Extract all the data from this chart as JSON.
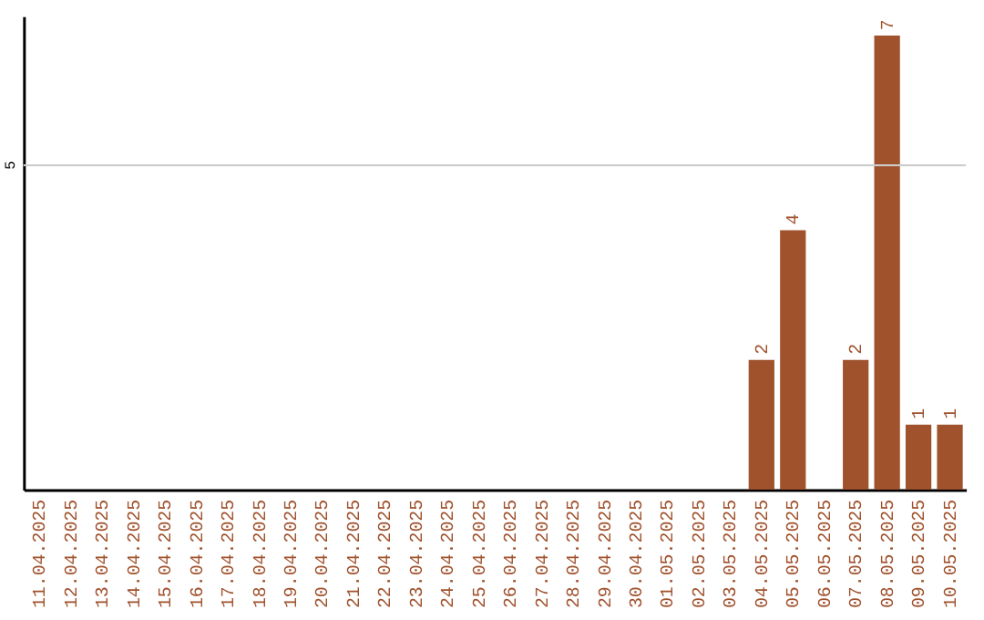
{
  "chart_data": {
    "type": "bar",
    "categories": [
      "11.04.2025",
      "12.04.2025",
      "13.04.2025",
      "14.04.2025",
      "15.04.2025",
      "16.04.2025",
      "17.04.2025",
      "18.04.2025",
      "19.04.2025",
      "20.04.2025",
      "21.04.2025",
      "22.04.2025",
      "23.04.2025",
      "24.04.2025",
      "25.04.2025",
      "26.04.2025",
      "27.04.2025",
      "28.04.2025",
      "29.04.2025",
      "30.04.2025",
      "01.05.2025",
      "02.05.2025",
      "03.05.2025",
      "04.05.2025",
      "05.05.2025",
      "06.05.2025",
      "07.05.2025",
      "08.05.2025",
      "09.05.2025",
      "10.05.2025"
    ],
    "values": [
      null,
      null,
      null,
      null,
      null,
      null,
      null,
      null,
      null,
      null,
      null,
      null,
      null,
      null,
      null,
      null,
      null,
      null,
      null,
      null,
      null,
      null,
      null,
      2,
      4,
      null,
      2,
      7,
      1,
      1
    ],
    "data_labels": true,
    "color": "#a0522d",
    "ylim": [
      0,
      7.3
    ],
    "ref_lines": [
      {
        "axis": "y",
        "value": 5,
        "label": "5",
        "color": "#cccccc"
      }
    ]
  }
}
